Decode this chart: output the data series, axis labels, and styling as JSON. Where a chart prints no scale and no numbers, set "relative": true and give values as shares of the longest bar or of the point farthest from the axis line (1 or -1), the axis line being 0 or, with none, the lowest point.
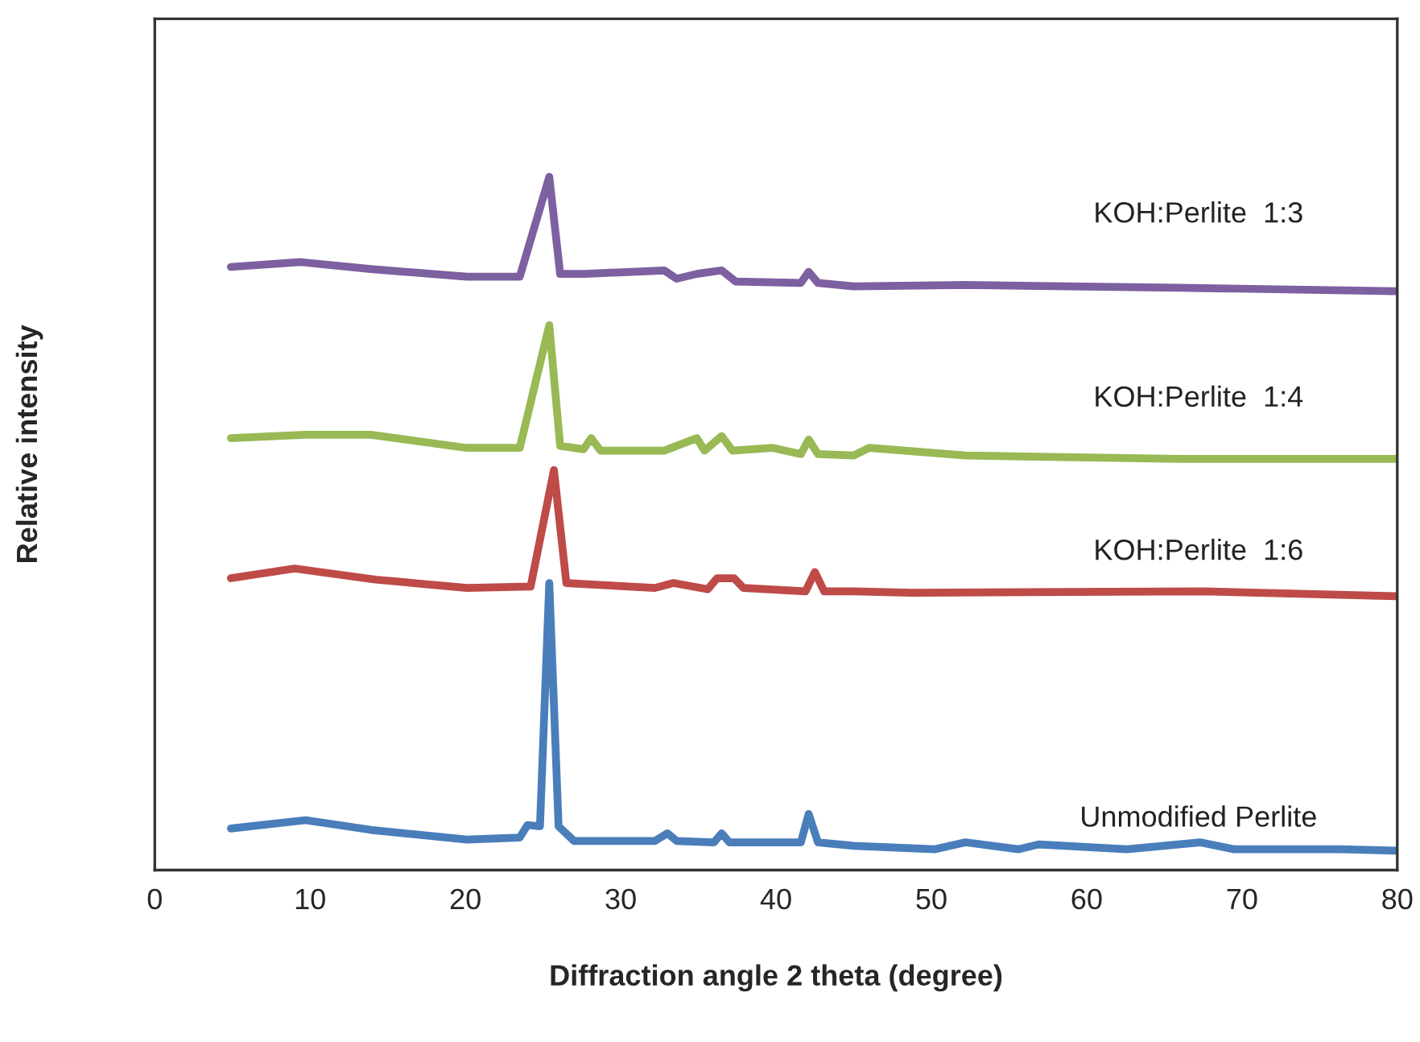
{
  "chart_data": {
    "type": "line",
    "relative": true,
    "xlabel": "Diffraction angle 2 theta (degree)",
    "ylabel": "Relative intensity",
    "xlim": [
      0,
      80
    ],
    "xticks": [
      0,
      10,
      20,
      30,
      40,
      50,
      60,
      70,
      80
    ],
    "grid": false,
    "legend": false,
    "marker": "none",
    "line_style": "solid",
    "series": [
      {
        "name": "Unmodified Perlite",
        "color": "#4a7ebb",
        "x": [
          4.9,
          9.7,
          13.9,
          20.1,
          23.5,
          24.0,
          24.8,
          25.4,
          26.0,
          27.0,
          32.2,
          33.0,
          33.6,
          36.0,
          36.5,
          37.0,
          41.6,
          42.1,
          42.7,
          45.0,
          50.2,
          52.2,
          55.6,
          56.9,
          62.6,
          67.3,
          69.5,
          76.4,
          79.9
        ],
        "values": [
          0.06,
          0.072,
          0.058,
          0.044,
          0.047,
          0.065,
          0.063,
          0.414,
          0.063,
          0.042,
          0.042,
          0.053,
          0.042,
          0.04,
          0.053,
          0.04,
          0.04,
          0.081,
          0.04,
          0.035,
          0.03,
          0.04,
          0.03,
          0.037,
          0.03,
          0.04,
          0.03,
          0.03,
          0.028
        ]
      },
      {
        "name": "KOH:Perlite  1:6",
        "color": "#be4b48",
        "x": [
          4.9,
          9.0,
          14.2,
          20.1,
          24.2,
          25.7,
          26.5,
          32.2,
          33.4,
          35.6,
          36.2,
          37.3,
          37.9,
          41.9,
          42.5,
          43.1,
          45.0,
          48.8,
          67.5,
          79.9
        ],
        "values": [
          0.421,
          0.435,
          0.419,
          0.407,
          0.409,
          0.577,
          0.414,
          0.407,
          0.414,
          0.405,
          0.421,
          0.421,
          0.407,
          0.402,
          0.43,
          0.402,
          0.402,
          0.4,
          0.402,
          0.395
        ]
      },
      {
        "name": "KOH:Perlite  1:4",
        "color": "#98b954",
        "x": [
          4.9,
          9.7,
          13.9,
          20.1,
          23.5,
          25.4,
          26.1,
          27.6,
          28.1,
          28.7,
          32.8,
          34.9,
          35.4,
          36.5,
          37.2,
          39.8,
          41.6,
          42.1,
          42.7,
          45.0,
          46.0,
          52.2,
          66.0,
          79.9
        ],
        "values": [
          0.623,
          0.628,
          0.628,
          0.609,
          0.609,
          0.786,
          0.612,
          0.607,
          0.623,
          0.605,
          0.605,
          0.623,
          0.605,
          0.626,
          0.605,
          0.609,
          0.6,
          0.621,
          0.6,
          0.598,
          0.609,
          0.598,
          0.593,
          0.593
        ]
      },
      {
        "name": "KOH:Perlite  1:3",
        "color": "#7d60a0",
        "x": [
          4.9,
          9.4,
          13.9,
          20.1,
          23.5,
          25.4,
          26.1,
          27.7,
          32.8,
          33.6,
          34.9,
          36.5,
          37.4,
          41.6,
          42.1,
          42.7,
          45.0,
          52.2,
          66.0,
          79.9
        ],
        "values": [
          0.87,
          0.877,
          0.867,
          0.856,
          0.856,
          1.0,
          0.86,
          0.86,
          0.865,
          0.853,
          0.86,
          0.865,
          0.849,
          0.847,
          0.863,
          0.847,
          0.842,
          0.844,
          0.84,
          0.835
        ]
      }
    ]
  }
}
